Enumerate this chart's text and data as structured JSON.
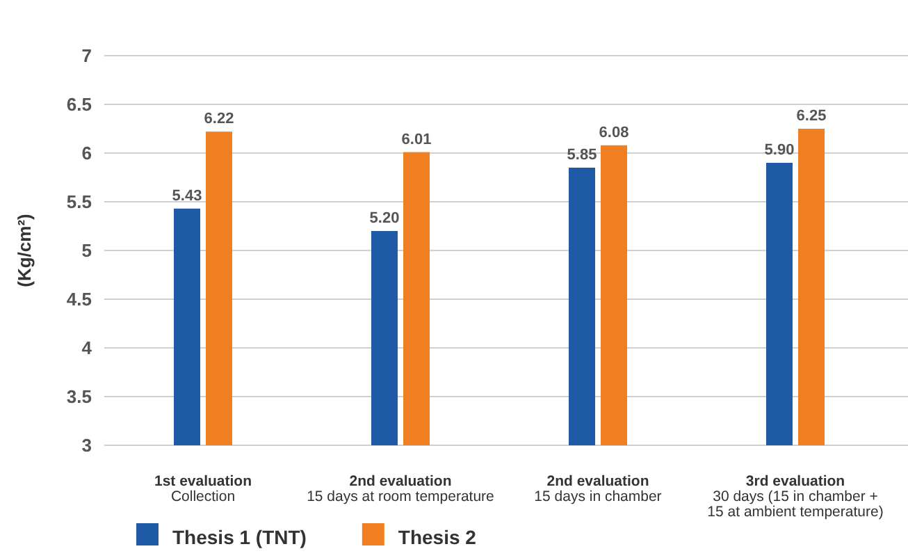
{
  "chart_data": {
    "type": "bar",
    "ylabel": "(Kg/cm²)",
    "categories": [
      "1st evaluation\nCollection",
      "2nd evaluation\n15 days at room temperature",
      "2nd evaluation\n15 days in chamber",
      "3rd evaluation\n30 days (15 in chamber +\n15 at ambient temperature)"
    ],
    "series": [
      {
        "name": "Thesis 1 (TNT)",
        "color": "#1f5aa6",
        "values": [
          5.43,
          5.2,
          5.85,
          5.9
        ],
        "value_labels": [
          "5.43",
          "5.20",
          "5.85",
          "5.90"
        ]
      },
      {
        "name": "Thesis 2",
        "color": "#f07f21",
        "values": [
          6.22,
          6.01,
          6.08,
          6.25
        ],
        "value_labels": [
          "6.22",
          "6.01",
          "6.08",
          "6.25"
        ]
      }
    ],
    "ylim": [
      3,
      7
    ],
    "yticks": [
      3,
      3.5,
      4,
      4.5,
      5,
      5.5,
      6,
      6.5,
      7
    ],
    "grid": "y",
    "legend": "bottom"
  }
}
